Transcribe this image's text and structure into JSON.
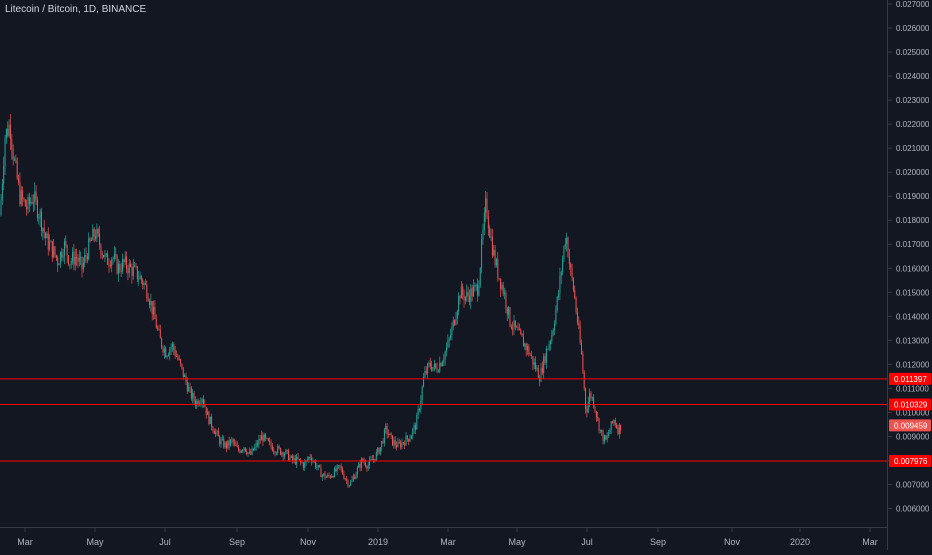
{
  "header": {
    "symbol_title": "Litecoin / Bitcoin, 1D, BINANCE"
  },
  "colors": {
    "background": "#131722",
    "up": "#26a69a",
    "down": "#ef5350",
    "level_line": "#ff0000",
    "axis_text": "#b2b5be",
    "axis_border": "#363a45"
  },
  "chart_data": {
    "type": "candlestick",
    "ylim": [
      0.0055,
      0.0272
    ],
    "y_ticks": [
      "0.006000",
      "0.007000",
      "0.008000",
      "0.009000",
      "0.010000",
      "0.011000",
      "0.012000",
      "0.013000",
      "0.014000",
      "0.015000",
      "0.016000",
      "0.017000",
      "0.018000",
      "0.019000",
      "0.020000",
      "0.021000",
      "0.022000",
      "0.023000",
      "0.024000",
      "0.025000",
      "0.026000",
      "0.027000"
    ],
    "x_ticks": [
      "Mar",
      "May",
      "Jul",
      "Sep",
      "Nov",
      "2019",
      "Mar",
      "May",
      "Jul",
      "Sep",
      "Nov",
      "2020",
      "Mar"
    ],
    "horizontal_levels": [
      {
        "label": "0.011397",
        "value": 0.011397
      },
      {
        "label": "0.010329",
        "value": 0.010329
      },
      {
        "label": "0.007976",
        "value": 0.007976
      }
    ],
    "last_price": {
      "label": "0.009459",
      "value": 0.009459
    },
    "price_path": [
      [
        0,
        0.0182
      ],
      [
        5,
        0.0215
      ],
      [
        10,
        0.022
      ],
      [
        14,
        0.0205
      ],
      [
        20,
        0.019
      ],
      [
        27,
        0.0185
      ],
      [
        33,
        0.019
      ],
      [
        40,
        0.0182
      ],
      [
        46,
        0.0172
      ],
      [
        52,
        0.0168
      ],
      [
        58,
        0.0163
      ],
      [
        64,
        0.017
      ],
      [
        70,
        0.0163
      ],
      [
        76,
        0.0165
      ],
      [
        82,
        0.016
      ],
      [
        88,
        0.0168
      ],
      [
        95,
        0.0175
      ],
      [
        100,
        0.017
      ],
      [
        106,
        0.0163
      ],
      [
        112,
        0.0165
      ],
      [
        118,
        0.016
      ],
      [
        124,
        0.0162
      ],
      [
        130,
        0.016
      ],
      [
        136,
        0.0158
      ],
      [
        142,
        0.0155
      ],
      [
        148,
        0.015
      ],
      [
        154,
        0.014
      ],
      [
        160,
        0.013
      ],
      [
        166,
        0.0125
      ],
      [
        172,
        0.0128
      ],
      [
        178,
        0.0122
      ],
      [
        184,
        0.0115
      ],
      [
        190,
        0.0108
      ],
      [
        196,
        0.0104
      ],
      [
        202,
        0.0107
      ],
      [
        208,
        0.0098
      ],
      [
        214,
        0.0093
      ],
      [
        220,
        0.0088
      ],
      [
        226,
        0.0086
      ],
      [
        232,
        0.0088
      ],
      [
        238,
        0.0084
      ],
      [
        244,
        0.0086
      ],
      [
        250,
        0.0082
      ],
      [
        256,
        0.0086
      ],
      [
        262,
        0.009
      ],
      [
        268,
        0.0087
      ],
      [
        274,
        0.0085
      ],
      [
        280,
        0.0084
      ],
      [
        286,
        0.0083
      ],
      [
        292,
        0.008
      ],
      [
        298,
        0.008
      ],
      [
        304,
        0.0078
      ],
      [
        310,
        0.0082
      ],
      [
        316,
        0.0078
      ],
      [
        322,
        0.0074
      ],
      [
        328,
        0.0073
      ],
      [
        334,
        0.0075
      ],
      [
        340,
        0.0077
      ],
      [
        346,
        0.0072
      ],
      [
        350,
        0.007
      ],
      [
        356,
        0.0075
      ],
      [
        362,
        0.008
      ],
      [
        368,
        0.0078
      ],
      [
        374,
        0.0081
      ],
      [
        380,
        0.0085
      ],
      [
        386,
        0.0093
      ],
      [
        392,
        0.0088
      ],
      [
        398,
        0.0086
      ],
      [
        404,
        0.0088
      ],
      [
        410,
        0.009
      ],
      [
        416,
        0.0095
      ],
      [
        420,
        0.0104
      ],
      [
        424,
        0.0115
      ],
      [
        430,
        0.012
      ],
      [
        436,
        0.0118
      ],
      [
        442,
        0.0122
      ],
      [
        448,
        0.0128
      ],
      [
        454,
        0.0138
      ],
      [
        460,
        0.015
      ],
      [
        466,
        0.0148
      ],
      [
        472,
        0.015
      ],
      [
        478,
        0.0152
      ],
      [
        482,
        0.017
      ],
      [
        486,
        0.0187
      ],
      [
        490,
        0.0175
      ],
      [
        494,
        0.0165
      ],
      [
        498,
        0.0158
      ],
      [
        504,
        0.015
      ],
      [
        510,
        0.0138
      ],
      [
        516,
        0.0134
      ],
      [
        522,
        0.013
      ],
      [
        528,
        0.0126
      ],
      [
        534,
        0.012
      ],
      [
        540,
        0.0115
      ],
      [
        546,
        0.0125
      ],
      [
        552,
        0.0133
      ],
      [
        558,
        0.0148
      ],
      [
        562,
        0.0162
      ],
      [
        566,
        0.0175
      ],
      [
        570,
        0.016
      ],
      [
        574,
        0.015
      ],
      [
        578,
        0.0136
      ],
      [
        582,
        0.0122
      ],
      [
        586,
        0.01
      ],
      [
        590,
        0.0108
      ],
      [
        594,
        0.0104
      ],
      [
        598,
        0.0096
      ],
      [
        602,
        0.009
      ],
      [
        606,
        0.0088
      ],
      [
        610,
        0.0093
      ],
      [
        614,
        0.0097
      ],
      [
        618,
        0.0093
      ],
      [
        622,
        0.0095
      ]
    ]
  }
}
